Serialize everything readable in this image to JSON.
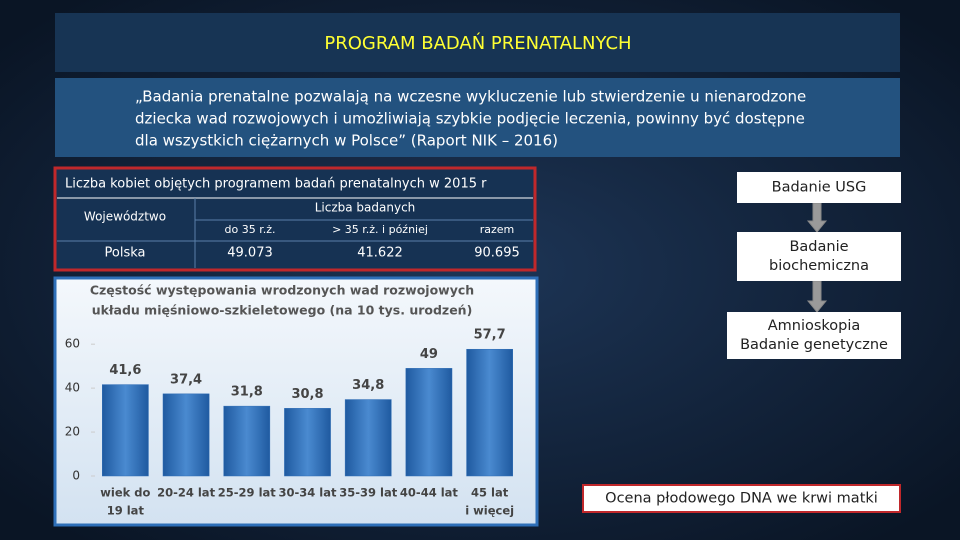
{
  "header": {
    "title": "PROGRAM BADAŃ PRENATALNYCH"
  },
  "quote": {
    "lines": [
      "„Badania prenatalne pozwalają na wczesne wykluczenie lub stwierdzenie u nienarodzone",
      "dziecka  wad rozwojowych i umożliwiają szybkie podjęcie leczenia, powinny być dostępne",
      "dla wszystkich ciężarnych w Polsce” (Raport NIK – 2016)"
    ]
  },
  "table": {
    "caption": "Liczba kobiet objętych programem badań prenatalnych w 2015 r",
    "header": [
      "Województwo",
      "Liczba badanych"
    ],
    "subheader": [
      "do 35 r.ż.",
      "> 35 r.ż. i później",
      "razem"
    ],
    "rows": [
      [
        "Polska",
        "49.073",
        "41.622",
        "90.695"
      ]
    ]
  },
  "chart_data": {
    "type": "bar",
    "title": [
      "Częstość występowania wrodzonych wad rozwojowych",
      "układu mięśniowo-szkieletowego (na 10 tys. urodzeń)"
    ],
    "categories": [
      [
        "wiek do",
        "19 lat"
      ],
      [
        "20-24 lat"
      ],
      [
        "25-29 lat"
      ],
      [
        "30-34 lat"
      ],
      [
        "35-39 lat"
      ],
      [
        "40-44 lat"
      ],
      [
        "45 lat",
        "i więcej"
      ]
    ],
    "values": [
      41.6,
      37.4,
      31.8,
      30.8,
      34.8,
      49,
      57.7
    ],
    "value_labels": [
      "41,6",
      "37,4",
      "31,8",
      "30,8",
      "34,8",
      "49",
      "57,7"
    ],
    "color": "#2f6db5",
    "ylim": [
      0,
      66
    ],
    "yticks": [
      0,
      20,
      40,
      60
    ]
  },
  "flow": {
    "nodes": [
      {
        "lines": [
          "Badanie USG"
        ]
      },
      {
        "lines": [
          "Badanie",
          "biochemiczna"
        ]
      },
      {
        "lines": [
          "Amnioskopia",
          "Badanie genetyczne"
        ]
      },
      {
        "lines": [
          "Ocena płodowego DNA we krwi matki"
        ]
      }
    ]
  }
}
